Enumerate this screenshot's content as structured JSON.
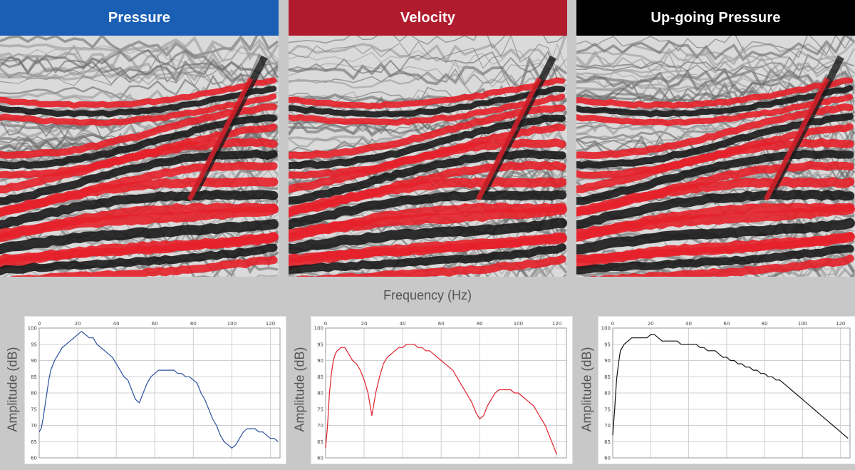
{
  "panels": [
    {
      "title": "Pressure",
      "header_color": "#1a5fb4",
      "trace_color": "#2b4f9e"
    },
    {
      "title": "Velocity",
      "header_color": "#b01c2e",
      "trace_color": "#e0202a"
    },
    {
      "title": "Up-going Pressure",
      "header_color": "#000000",
      "trace_color": "#111111"
    }
  ],
  "seismic_colors": {
    "positive": "#e5202a",
    "negative": "#1a1a1a",
    "background": "#dadada"
  },
  "xlabel": "Frequency (Hz)",
  "ylabel": "Amplitude (dB)",
  "chart_data": [
    {
      "type": "line",
      "title": "Pressure",
      "xlabel": "Frequency (Hz)",
      "ylabel": "Amplitude (dB)",
      "xlim": [
        0,
        125
      ],
      "ylim": [
        60,
        100
      ],
      "xticks": [
        0,
        20,
        40,
        60,
        80,
        100,
        120
      ],
      "yticks": [
        60,
        65,
        70,
        75,
        80,
        85,
        90,
        95,
        100
      ],
      "grid": true,
      "series": [
        {
          "color": "#2b4f9e",
          "x": [
            0,
            1,
            2,
            3,
            4,
            5,
            6,
            8,
            10,
            12,
            14,
            16,
            18,
            20,
            22,
            24,
            26,
            28,
            30,
            32,
            34,
            36,
            38,
            40,
            42,
            44,
            46,
            48,
            50,
            52,
            54,
            56,
            58,
            60,
            62,
            64,
            66,
            68,
            70,
            72,
            74,
            76,
            78,
            80,
            82,
            84,
            86,
            88,
            90,
            92,
            94,
            96,
            98,
            100,
            102,
            104,
            106,
            108,
            110,
            112,
            114,
            116,
            118,
            120,
            122,
            124
          ],
          "y": [
            68,
            69,
            72,
            76,
            80,
            84,
            87,
            90,
            92,
            94,
            95,
            96,
            97,
            98,
            99,
            98,
            97,
            97,
            95,
            94,
            93,
            92,
            91,
            89,
            87,
            85,
            84,
            81,
            78,
            77,
            80,
            83,
            85,
            86,
            87,
            87,
            87,
            87,
            87,
            86,
            86,
            85,
            85,
            84,
            83,
            80,
            78,
            75,
            72,
            70,
            67,
            65,
            64,
            63,
            64,
            66,
            68,
            69,
            69,
            69,
            68,
            68,
            67,
            66,
            66,
            65
          ]
        }
      ]
    },
    {
      "type": "line",
      "title": "Velocity",
      "xlabel": "Frequency (Hz)",
      "ylabel": "Amplitude (dB)",
      "xlim": [
        0,
        125
      ],
      "ylim": [
        60,
        100
      ],
      "xticks": [
        0,
        20,
        40,
        60,
        80,
        100,
        120
      ],
      "yticks": [
        60,
        65,
        70,
        75,
        80,
        85,
        90,
        95,
        100
      ],
      "grid": true,
      "series": [
        {
          "color": "#e0202a",
          "x": [
            0,
            1,
            2,
            3,
            4,
            5,
            6,
            8,
            10,
            12,
            14,
            16,
            18,
            20,
            22,
            24,
            26,
            28,
            30,
            32,
            34,
            36,
            38,
            40,
            42,
            44,
            46,
            48,
            50,
            52,
            54,
            56,
            58,
            60,
            62,
            64,
            66,
            68,
            70,
            72,
            74,
            76,
            78,
            80,
            82,
            84,
            86,
            88,
            90,
            92,
            94,
            96,
            98,
            100,
            102,
            104,
            106,
            108,
            110,
            112,
            114,
            116,
            118,
            120
          ],
          "y": [
            63,
            70,
            80,
            86,
            90,
            92,
            93,
            94,
            94,
            92,
            90,
            89,
            87,
            84,
            80,
            73,
            80,
            85,
            89,
            91,
            92,
            93,
            94,
            94,
            95,
            95,
            95,
            94,
            94,
            93,
            93,
            92,
            91,
            90,
            89,
            88,
            87,
            85,
            83,
            81,
            79,
            77,
            74,
            72,
            73,
            76,
            78,
            80,
            81,
            81,
            81,
            81,
            80,
            80,
            79,
            78,
            77,
            76,
            74,
            72,
            70,
            67,
            64,
            61
          ]
        }
      ]
    },
    {
      "type": "line",
      "title": "Up-going Pressure",
      "xlabel": "Frequency (Hz)",
      "ylabel": "Amplitude (dB)",
      "xlim": [
        0,
        125
      ],
      "ylim": [
        60,
        100
      ],
      "xticks": [
        0,
        20,
        40,
        60,
        80,
        100,
        120
      ],
      "yticks": [
        60,
        65,
        70,
        75,
        80,
        85,
        90,
        95,
        100
      ],
      "grid": true,
      "series": [
        {
          "color": "#111111",
          "x": [
            0,
            1,
            2,
            3,
            4,
            6,
            8,
            10,
            12,
            14,
            16,
            18,
            20,
            22,
            24,
            26,
            28,
            30,
            32,
            34,
            36,
            38,
            40,
            42,
            44,
            46,
            48,
            50,
            52,
            54,
            56,
            58,
            60,
            62,
            64,
            66,
            68,
            70,
            72,
            74,
            76,
            78,
            80,
            82,
            84,
            86,
            88,
            90,
            92,
            94,
            96,
            98,
            100,
            102,
            104,
            106,
            108,
            110,
            112,
            114,
            116,
            118,
            120,
            122,
            124
          ],
          "y": [
            67,
            75,
            84,
            89,
            93,
            95,
            96,
            97,
            97,
            97,
            97,
            97,
            98,
            98,
            97,
            96,
            96,
            96,
            96,
            96,
            95,
            95,
            95,
            95,
            95,
            94,
            94,
            93,
            93,
            93,
            92,
            91,
            91,
            90,
            90,
            89,
            89,
            88,
            88,
            87,
            87,
            86,
            86,
            85,
            85,
            84,
            84,
            83,
            82,
            81,
            80,
            79,
            78,
            77,
            76,
            75,
            74,
            73,
            72,
            71,
            70,
            69,
            68,
            67,
            66
          ]
        }
      ]
    }
  ]
}
